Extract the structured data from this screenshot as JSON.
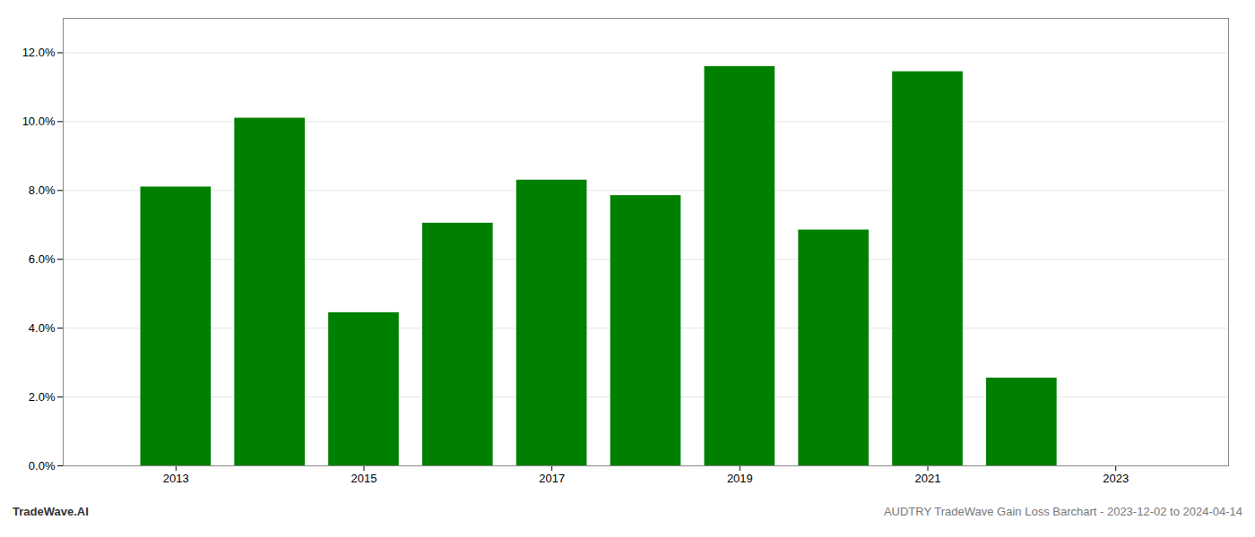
{
  "chart_data": {
    "type": "bar",
    "x": [
      2013,
      2014,
      2015,
      2016,
      2017,
      2018,
      2019,
      2020,
      2021,
      2022
    ],
    "values": [
      0.081,
      0.101,
      0.0445,
      0.0705,
      0.083,
      0.0785,
      0.116,
      0.0685,
      0.1145,
      0.0255
    ],
    "color": "#008000",
    "xlim": [
      2011.8,
      2024.2
    ],
    "xticks": [
      2013,
      2015,
      2017,
      2019,
      2021,
      2023
    ],
    "ylim": [
      0,
      0.13
    ],
    "yticks": [
      {
        "value": 0.0,
        "label": "0.0%"
      },
      {
        "value": 0.02,
        "label": "2.0%"
      },
      {
        "value": 0.04,
        "label": "4.0%"
      },
      {
        "value": 0.06,
        "label": "6.0%"
      },
      {
        "value": 0.08,
        "label": "8.0%"
      },
      {
        "value": 0.1,
        "label": "10.0%"
      },
      {
        "value": 0.12,
        "label": "12.0%"
      }
    ],
    "grid": true,
    "annotations": [
      "TradeWave.AI",
      "AUDTRY TradeWave Gain Loss Barchart - 2023-12-02 to 2024-04-14"
    ]
  }
}
